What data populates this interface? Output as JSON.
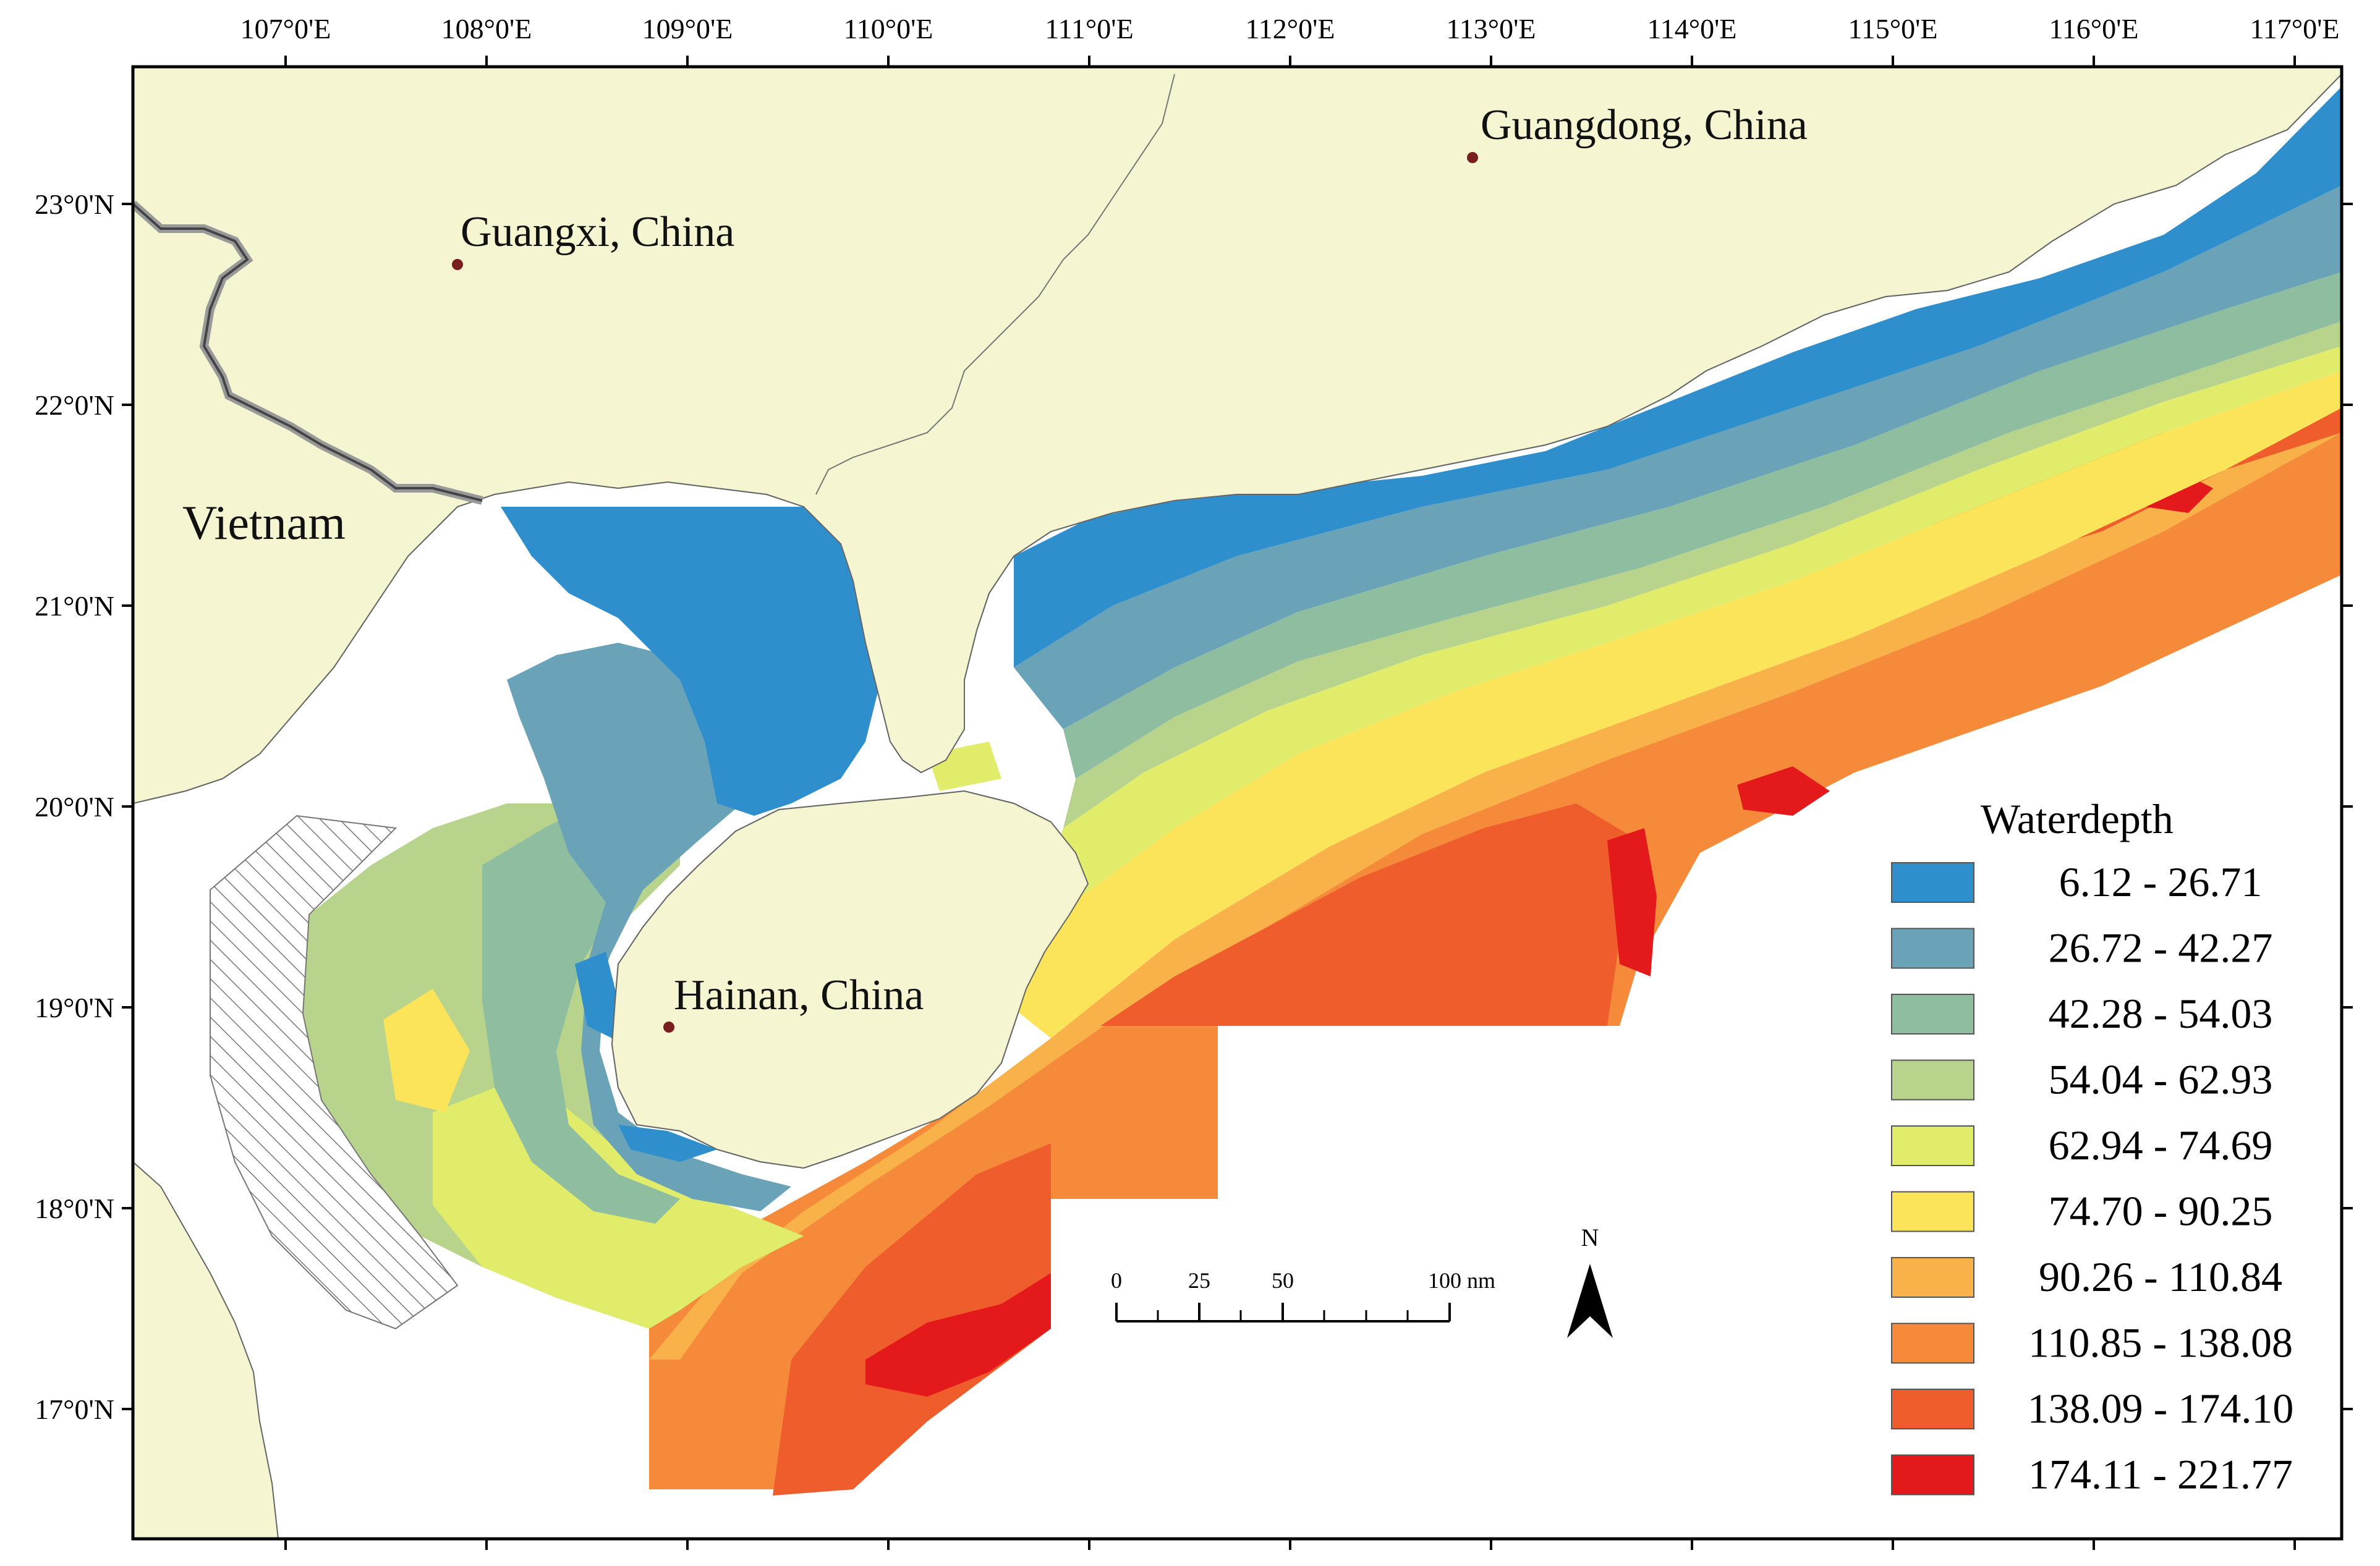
{
  "map": {
    "longitude_labels": [
      "107°0'E",
      "108°0'E",
      "109°0'E",
      "110°0'E",
      "111°0'E",
      "112°0'E",
      "113°0'E",
      "114°0'E",
      "115°0'E",
      "116°0'E",
      "117°0'E"
    ],
    "latitude_labels": [
      "23°0'N",
      "22°0'N",
      "21°0'N",
      "20°0'N",
      "19°0'N",
      "18°0'N",
      "17°0'N"
    ],
    "places": {
      "guangdong": "Guangdong, China",
      "guangxi": "Guangxi, China",
      "vietnam": "Vietnam",
      "hainan": "Hainan, China"
    },
    "legend": {
      "title": "Waterdepth",
      "classes": [
        {
          "label": "6.12 - 26.71",
          "color": "#2e8fcc"
        },
        {
          "label": "26.72 - 42.27",
          "color": "#6aa3b8"
        },
        {
          "label": "42.28 - 54.03",
          "color": "#8fbd9f"
        },
        {
          "label": "54.04 - 62.93",
          "color": "#b8d38c"
        },
        {
          "label": "62.94 - 74.69",
          "color": "#e0ec6a"
        },
        {
          "label": "74.70 - 90.25",
          "color": "#fbe35a"
        },
        {
          "label": "90.26 - 110.84",
          "color": "#f9b24a"
        },
        {
          "label": "110.85 - 138.08",
          "color": "#f58a3a"
        },
        {
          "label": "138.09 - 174.10",
          "color": "#ef5d2c"
        },
        {
          "label": "174.11 - 221.77",
          "color": "#e3191c"
        }
      ]
    },
    "scale_bar": {
      "labels": [
        "0",
        "25",
        "50",
        "100 nm"
      ]
    },
    "north_arrow": "N",
    "colors": {
      "land": "#f5f5d2",
      "sea": "#ffffff",
      "coast": "#666666",
      "border": "#888888"
    }
  }
}
